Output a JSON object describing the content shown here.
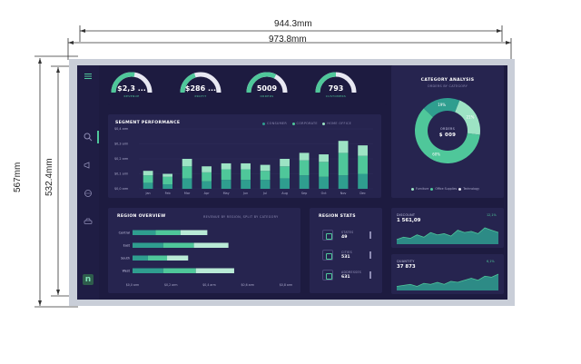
{
  "dimensions": {
    "width_outer": "973.8mm",
    "width_inner": "944.3mm",
    "height_outer": "567mm",
    "height_inner": "532.4mm"
  },
  "colors": {
    "background": "#1d1b40",
    "panel": "#26244f",
    "accent": "#4fc79a",
    "teal": "#2f9e8f",
    "light_green": "#9de3c4",
    "mint": "#b9ead6",
    "muted": "#8e8cb4"
  },
  "gauges": [
    {
      "value": "$2,3 ...",
      "label": "REVENUE",
      "fraction": 0.55
    },
    {
      "value": "$286 ...",
      "label": "PROFIT",
      "fraction": 0.4
    },
    {
      "value": "5009",
      "label": "ORDERS",
      "fraction": 0.65
    },
    {
      "value": "793",
      "label": "CUSTOMERS",
      "fraction": 0.5
    }
  ],
  "sidebar": {
    "icons": [
      "menu-icon",
      "search-icon",
      "megaphone-icon",
      "globe-icon",
      "car-icon"
    ],
    "logo": "n"
  },
  "segment": {
    "title": "SEGMENT PERFORMANCE",
    "legend": [
      "CONSUMER",
      "CORPORATE",
      "HOME OFFICE"
    ]
  },
  "region_overview": {
    "title": "REGION OVERVIEW",
    "subtitle": "REVENUE BY REGION, SPLIT BY CATEGORY"
  },
  "region_stats": {
    "title": "REGION STATS",
    "items": [
      {
        "label": "STATES",
        "value": "49",
        "icon": "map-icon"
      },
      {
        "label": "CITIES",
        "value": "531",
        "icon": "building-icon"
      },
      {
        "label": "ADDRESSES",
        "value": "631",
        "icon": "pin-icon"
      }
    ]
  },
  "category": {
    "title": "CATEGORY ANALYSIS",
    "subtitle": "ORDERS BY CATEGORY",
    "center_label": "ORDERS",
    "center_value": "$ 009",
    "legend": [
      "Furniture",
      "Office Supplies",
      "Technology"
    ]
  },
  "kpis": [
    {
      "label": "DISCOUNT",
      "value": "1 561,09",
      "pct": "12,1%"
    },
    {
      "label": "QUANTITY",
      "value": "37 873",
      "pct": "6,1%"
    }
  ],
  "chart_data": [
    {
      "type": "bar",
      "title": "SEGMENT PERFORMANCE",
      "categories": [
        "Jan",
        "Feb",
        "Mar",
        "Apr",
        "May",
        "Jun",
        "Jul",
        "Aug",
        "Sep",
        "Oct",
        "Nov",
        "Dec"
      ],
      "ytick_labels": [
        "$0,0 arm",
        "$0,1 arm",
        "$0,2 arm",
        "$0,3 arm",
        "$0,4 arm"
      ],
      "ylim": [
        0,
        0.4
      ],
      "series": [
        {
          "name": "CONSUMER",
          "values": [
            0.04,
            0.03,
            0.07,
            0.05,
            0.06,
            0.06,
            0.06,
            0.07,
            0.09,
            0.08,
            0.09,
            0.1
          ]
        },
        {
          "name": "CORPORATE",
          "values": [
            0.05,
            0.05,
            0.08,
            0.06,
            0.07,
            0.07,
            0.06,
            0.08,
            0.1,
            0.1,
            0.15,
            0.12
          ]
        },
        {
          "name": "HOME OFFICE",
          "values": [
            0.03,
            0.02,
            0.05,
            0.04,
            0.04,
            0.04,
            0.04,
            0.05,
            0.05,
            0.05,
            0.08,
            0.07
          ]
        }
      ]
    },
    {
      "type": "bar",
      "title": "REGION OVERVIEW",
      "orientation": "horizontal",
      "categories": [
        "Central",
        "East",
        "South",
        "West"
      ],
      "xtick_labels": [
        "$0,0 arm",
        "$0,2 arm",
        "$0,4 arm",
        "$0,6 arm",
        "$0,8 arm"
      ],
      "xlim": [
        0,
        0.8
      ],
      "series": [
        {
          "name": "Furniture",
          "values": [
            0.12,
            0.16,
            0.08,
            0.16
          ]
        },
        {
          "name": "Office Supplies",
          "values": [
            0.13,
            0.16,
            0.1,
            0.17
          ]
        },
        {
          "name": "Technology",
          "values": [
            0.14,
            0.18,
            0.11,
            0.2
          ]
        }
      ]
    },
    {
      "type": "pie",
      "title": "CATEGORY ANALYSIS",
      "labels": [
        "Furniture",
        "Office Supplies",
        "Technology"
      ],
      "values": [
        21,
        60,
        19
      ],
      "slice_labels": [
        "21%",
        "60%",
        "19%"
      ]
    },
    {
      "type": "area",
      "title": "DISCOUNT",
      "values": [
        2,
        3,
        2.5,
        4,
        3,
        5,
        4,
        4.5,
        3.5,
        6,
        5,
        5.5,
        4.5,
        7,
        6,
        5
      ]
    },
    {
      "type": "area",
      "title": "QUANTITY",
      "values": [
        2,
        2.5,
        3,
        2,
        3.5,
        3,
        4,
        3,
        4.5,
        4,
        5,
        6,
        5,
        7,
        6.5,
        8
      ]
    }
  ]
}
